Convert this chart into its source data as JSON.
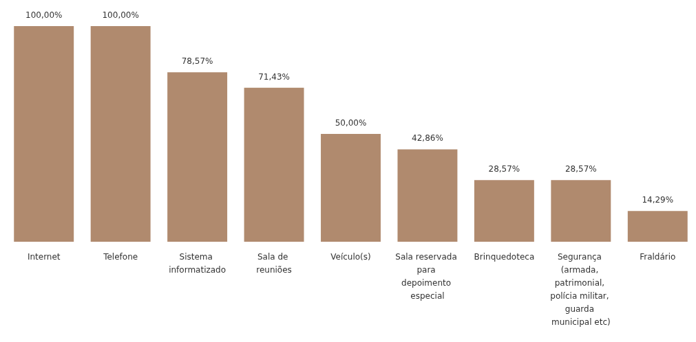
{
  "chart_data": {
    "type": "bar",
    "categories": [
      "Internet",
      "Telefone",
      "Sistema informatizado",
      "Sala de reuniões",
      "Veículo(s)",
      "Sala reservada para depoimento especial",
      "Brinquedoteca",
      "Segurança (armada, patrimonial, polícia militar, guarda municipal etc)",
      "Fraldário"
    ],
    "values": [
      100,
      100,
      78.57,
      71.43,
      50,
      42.86,
      28.57,
      28.57,
      14.29
    ],
    "value_labels": [
      "100,00%",
      "100,00%",
      "78,57%",
      "71,43%",
      "50,00%",
      "42,86%",
      "28,57%",
      "28,57%",
      "14,29%"
    ],
    "color": "#b08a6e"
  }
}
